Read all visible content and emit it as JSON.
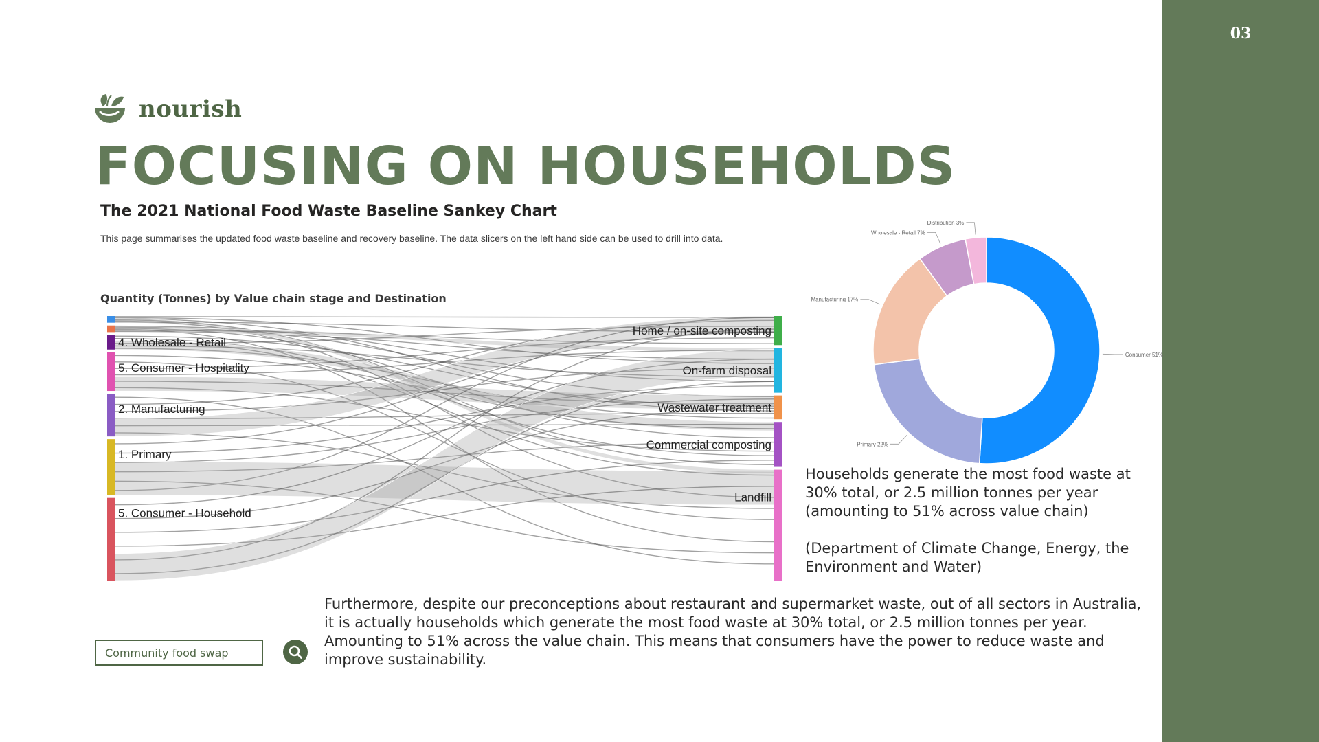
{
  "slide": {
    "page_number": "03",
    "brand": "nourish",
    "title": "FOCUSING ON HOUSEHOLDS",
    "accent_color": "#637a59"
  },
  "sankey_panel": {
    "title": "The 2021 National Food Waste Baseline Sankey Chart",
    "description": "This page summarises the updated food waste baseline and recovery baseline.  The data slicers on the left hand side can be used to drill into data.",
    "subtitle": "Quantity (Tonnes) by Value chain stage and Destination"
  },
  "side_text": {
    "paragraph1": "Households generate the most food waste at 30% total, or 2.5 million tonnes per year (amounting to 51% across value chain)",
    "paragraph2": "(Department of Climate Change, Energy, the Environment and Water)"
  },
  "body_text": "Furthermore, despite our preconceptions about restaurant and supermarket waste, out of all sectors in Australia, it is actually households which generate the most food waste at 30% total, or 2.5 million tonnes per year. Amounting to 51% across the value chain. This means that consumers have the power to reduce waste and improve sustainability.",
  "search": {
    "value": "Community food swap",
    "button_icon": "search-icon"
  },
  "chart_data": [
    {
      "type": "sankey",
      "title": "Quantity (Tonnes) by Value chain stage and Destination",
      "sources": [
        {
          "name": "",
          "share": 2.5,
          "color": "#3a8ee6"
        },
        {
          "name": "",
          "share": 2.5,
          "color": "#e8734a"
        },
        {
          "name": "4. Wholesale - Retail",
          "share": 5.5,
          "color": "#6a1b8a"
        },
        {
          "name": "5. Consumer - Hospitality",
          "share": 14.5,
          "color": "#e052b0"
        },
        {
          "name": "2. Manufacturing",
          "share": 16,
          "color": "#8a5cc4"
        },
        {
          "name": "1. Primary",
          "share": 21,
          "color": "#d8b824"
        },
        {
          "name": "5. Consumer - Household",
          "share": 31,
          "color": "#d9545e"
        }
      ],
      "destinations": [
        {
          "name": "Home / on-site composting",
          "share": 11,
          "color": "#3fae4a"
        },
        {
          "name": "On-farm disposal",
          "share": 17,
          "color": "#22b5e0"
        },
        {
          "name": "Wastewater treatment",
          "share": 9,
          "color": "#f0924a"
        },
        {
          "name": "Commercial composting",
          "share": 17,
          "color": "#a452c4"
        },
        {
          "name": "Landfill",
          "share": 42,
          "color": "#e870c8"
        }
      ]
    },
    {
      "type": "pie",
      "variant": "donut",
      "labels": [
        "Consumer 51%",
        "Primary 22%",
        "Manufacturing 17%",
        "Wholesale - Retail 7%",
        "Distribution 3%"
      ],
      "slices": [
        {
          "name": "Consumer",
          "value": 51,
          "color": "#118dff"
        },
        {
          "name": "Primary",
          "value": 22,
          "color": "#a0a8dc"
        },
        {
          "name": "Manufacturing",
          "value": 17,
          "color": "#f3c3aa"
        },
        {
          "name": "Wholesale - Retail",
          "value": 7,
          "color": "#c59acb"
        },
        {
          "name": "Distribution",
          "value": 3,
          "color": "#f3b7dc"
        }
      ]
    }
  ]
}
